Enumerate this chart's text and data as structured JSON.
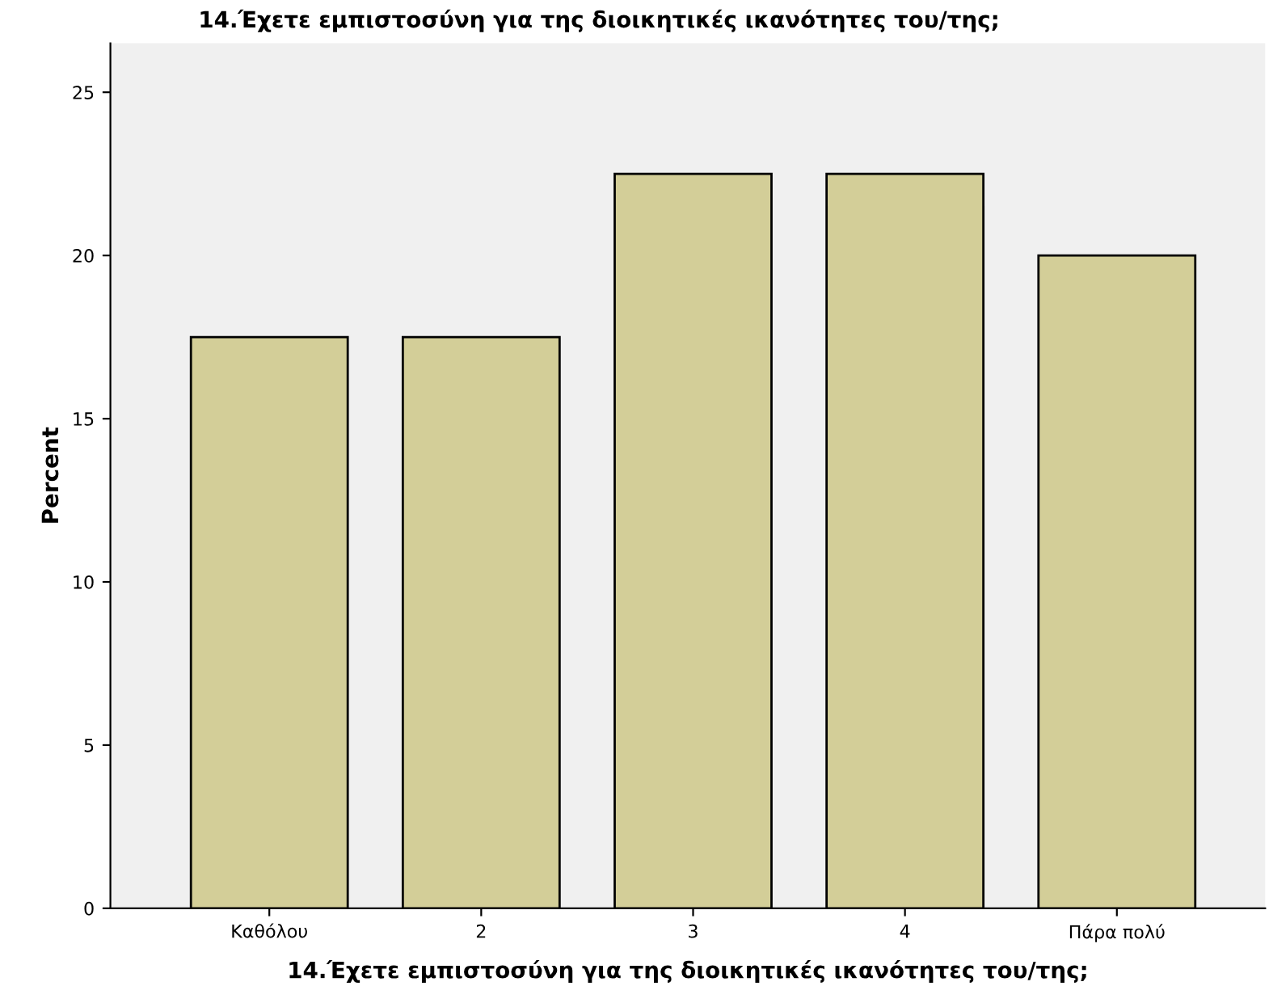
{
  "chart_data": {
    "type": "bar",
    "title": "14.Έχετε εμπιστοσύνη για της διοικητικές ικανότητες του/της;",
    "xlabel": "14.Έχετε εμπιστοσύνη για της διοικητικές ικανότητες του/της;",
    "ylabel": "Percent",
    "categories": [
      "Καθόλου",
      "2",
      "3",
      "4",
      "Πάρα πολύ"
    ],
    "values": [
      17.5,
      17.5,
      22.5,
      22.5,
      20.0
    ],
    "color": "#d3ce98",
    "ylim": [
      0,
      26.5
    ],
    "yticks": [
      0,
      5,
      10,
      15,
      20,
      25
    ],
    "grid": false,
    "legend": false
  }
}
